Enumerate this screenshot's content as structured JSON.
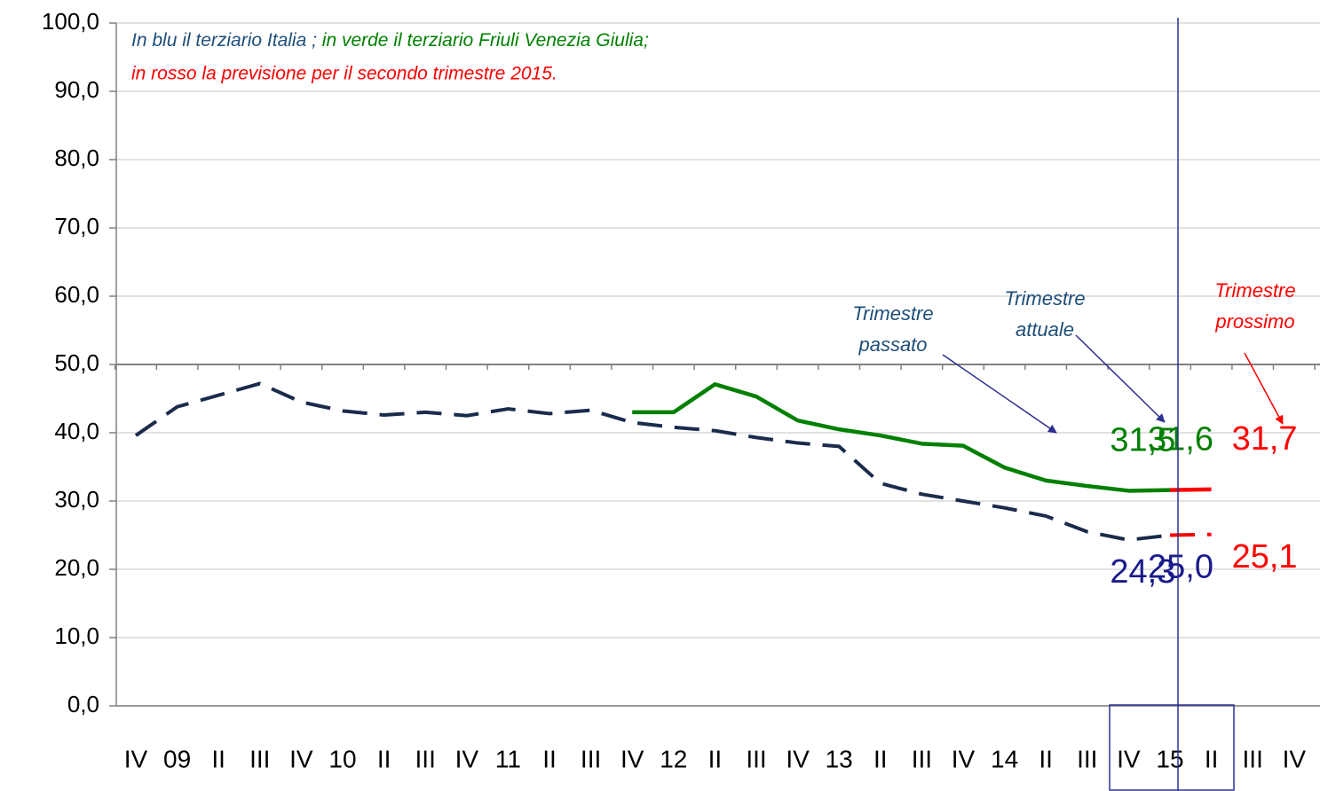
{
  "chart_data": {
    "type": "line",
    "note": [
      {
        "text": "In blu il terziario Italia ;",
        "color": "#1f4e79"
      },
      {
        "text": " in verde il terziario Friuli Venezia Giulia;",
        "color": "#008000"
      },
      {
        "text": "in rosso la previsione per il secondo trimestre 2015.",
        "color": "#ff0000"
      }
    ],
    "annotations": [
      {
        "lines": [
          "Trimestre",
          "passato"
        ],
        "color": "#1f4e79"
      },
      {
        "lines": [
          "Trimestre",
          "attuale"
        ],
        "color": "#1f4e79"
      },
      {
        "lines": [
          "Trimestre",
          "prossimo"
        ],
        "color": "#ff0000"
      }
    ],
    "categories": [
      "IV",
      "09",
      "II",
      "III",
      "IV",
      "10",
      "II",
      "III",
      "IV",
      "11",
      "II",
      "III",
      "IV",
      "12",
      "II",
      "III",
      "IV",
      "13",
      "II",
      "III",
      "IV",
      "14",
      "II",
      "III",
      "IV",
      "15",
      "II",
      "III",
      "IV"
    ],
    "ylim": [
      0,
      100
    ],
    "yticks": [
      {
        "value": 0,
        "label": "0,0"
      },
      {
        "value": 10,
        "label": "10,0"
      },
      {
        "value": 20,
        "label": "20,0"
      },
      {
        "value": 30,
        "label": "30,0"
      },
      {
        "value": 40,
        "label": "40,0"
      },
      {
        "value": 50,
        "label": "50,0"
      },
      {
        "value": 60,
        "label": "60,0"
      },
      {
        "value": 70,
        "label": "70,0"
      },
      {
        "value": 80,
        "label": "80,0"
      },
      {
        "value": 90,
        "label": "90,0"
      },
      {
        "value": 100,
        "label": "100,0"
      }
    ],
    "grid": true,
    "series": [
      {
        "color": "#1a2b4c",
        "dashed": true,
        "label_color": "#1a1a8c",
        "values": [
          39.6,
          43.8,
          45.5,
          47.2,
          44.5,
          43.2,
          42.6,
          43.0,
          42.5,
          43.5,
          42.8,
          43.3,
          41.5,
          40.8,
          40.3,
          39.3,
          38.5,
          38.0,
          32.6,
          31.0,
          30.0,
          29.0,
          27.8,
          25.5,
          24.3,
          25.0,
          null,
          null,
          null
        ],
        "value_labels": [
          null,
          null,
          null,
          null,
          null,
          null,
          null,
          null,
          null,
          null,
          null,
          null,
          null,
          null,
          null,
          null,
          null,
          null,
          null,
          null,
          null,
          null,
          null,
          null,
          "24,3",
          "25,0",
          null,
          null,
          null
        ]
      },
      {
        "color": "#008000",
        "dashed": false,
        "label_color": "#008000",
        "values": [
          null,
          null,
          null,
          null,
          null,
          null,
          null,
          null,
          null,
          null,
          null,
          null,
          43.0,
          43.0,
          47.1,
          45.3,
          41.8,
          40.5,
          39.6,
          38.4,
          38.1,
          34.9,
          33.0,
          32.2,
          31.5,
          31.6,
          null,
          null,
          null
        ],
        "value_labels": [
          null,
          null,
          null,
          null,
          null,
          null,
          null,
          null,
          null,
          null,
          null,
          null,
          null,
          null,
          null,
          null,
          null,
          null,
          null,
          null,
          null,
          null,
          null,
          null,
          "31,5",
          "31,6",
          null,
          null,
          null
        ]
      },
      {
        "color": "#ff0000",
        "dashed": true,
        "label_color": "#ff0000",
        "values": [
          null,
          null,
          null,
          null,
          null,
          null,
          null,
          null,
          null,
          null,
          null,
          null,
          null,
          null,
          null,
          null,
          null,
          null,
          null,
          null,
          null,
          null,
          null,
          null,
          null,
          25.0,
          25.1,
          null,
          null
        ],
        "value_labels": [
          null,
          null,
          null,
          null,
          null,
          null,
          null,
          null,
          null,
          null,
          null,
          null,
          null,
          null,
          null,
          null,
          null,
          null,
          null,
          null,
          null,
          null,
          null,
          null,
          null,
          null,
          "25,1",
          null,
          null
        ]
      },
      {
        "color": "#ff0000",
        "dashed": false,
        "label_color": "#ff0000",
        "values": [
          null,
          null,
          null,
          null,
          null,
          null,
          null,
          null,
          null,
          null,
          null,
          null,
          null,
          null,
          null,
          null,
          null,
          null,
          null,
          null,
          null,
          null,
          null,
          null,
          null,
          31.6,
          31.7,
          null,
          null
        ],
        "value_labels": [
          null,
          null,
          null,
          null,
          null,
          null,
          null,
          null,
          null,
          null,
          null,
          null,
          null,
          null,
          null,
          null,
          null,
          null,
          null,
          null,
          null,
          null,
          null,
          null,
          null,
          null,
          "31,7",
          null,
          null
        ]
      }
    ]
  }
}
